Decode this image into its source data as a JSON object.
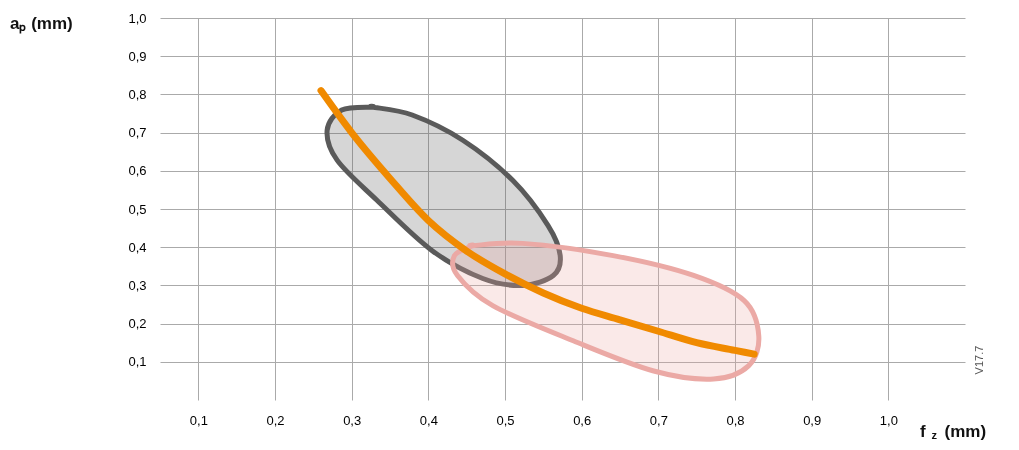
{
  "chart_data": {
    "type": "line",
    "xlabel": "f$_{z}$ (mm)",
    "ylabel": "aₚ (mm)",
    "series": [
      {
        "color": "#f08a00",
        "x": [
          0.26,
          0.3,
          0.35,
          0.4,
          0.45,
          0.5,
          0.55,
          0.6,
          0.65,
          0.7,
          0.75,
          0.8,
          0.825
        ],
        "values": [
          0.81,
          0.7,
          0.58,
          0.47,
          0.39,
          0.33,
          0.28,
          0.24,
          0.21,
          0.18,
          0.15,
          0.13,
          0.12
        ]
      }
    ],
    "xlim": [
      0.05,
      1.1
    ],
    "ylim": [
      0,
      1.0
    ],
    "xticks": [
      {
        "value": 0.1,
        "label": "0,1"
      },
      {
        "value": 0.2,
        "label": "0,2"
      },
      {
        "value": 0.3,
        "label": "0,3"
      },
      {
        "value": 0.4,
        "label": "0,4"
      },
      {
        "value": 0.5,
        "label": "0,5"
      },
      {
        "value": 0.6,
        "label": "0,6"
      },
      {
        "value": 0.7,
        "label": "0,7"
      },
      {
        "value": 0.8,
        "label": "0,8"
      },
      {
        "value": 0.9,
        "label": "0,9"
      },
      {
        "value": 1.0,
        "label": "1,0"
      }
    ],
    "yticks": [
      {
        "value": 0.1,
        "label": "0,1"
      },
      {
        "value": 0.2,
        "label": "0,2"
      },
      {
        "value": 0.3,
        "label": "0,3"
      },
      {
        "value": 0.4,
        "label": "0,4"
      },
      {
        "value": 0.5,
        "label": "0,5"
      },
      {
        "value": 0.6,
        "label": "0,6"
      },
      {
        "value": 0.7,
        "label": "0,7"
      },
      {
        "value": 0.8,
        "label": "0,8"
      },
      {
        "value": 0.9,
        "label": "0,9"
      },
      {
        "value": 1.0,
        "label": "1,0"
      }
    ],
    "grid": true,
    "marker": "none",
    "line_style": "solid",
    "annotations": [
      "V17.7"
    ]
  }
}
